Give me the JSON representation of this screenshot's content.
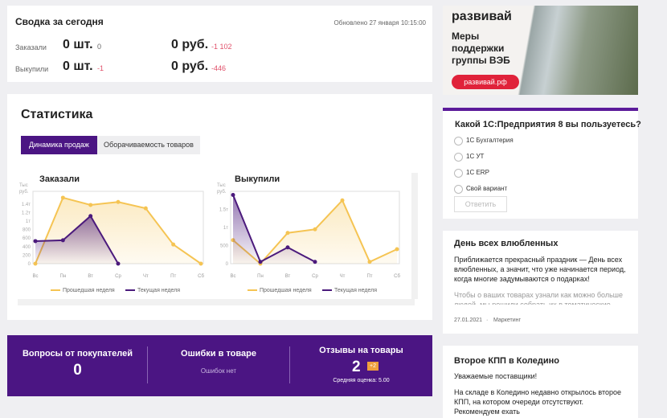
{
  "summary": {
    "title": "Сводка за сегодня",
    "updated": "Обновлено 27 января 10:15:00",
    "rows": [
      {
        "label": "Заказали",
        "count": "0 шт.",
        "count_change": "0",
        "sum": "0 руб.",
        "sum_change": "-1 102"
      },
      {
        "label": "Выкупили",
        "count": "0 шт.",
        "count_change": "-1",
        "sum": "0 руб.",
        "sum_change": "-446"
      }
    ]
  },
  "banner": {
    "brand": "развивай",
    "text": "Меры поддержки группы ВЭБ",
    "button": "развивай.рф"
  },
  "statistics": {
    "title": "Статистика",
    "tabs": [
      "Динамика продаж",
      "Оборачиваемость товаров"
    ]
  },
  "chart_data": [
    {
      "type": "line",
      "title": "Заказали",
      "y_label_lines": [
        "Тыс",
        "руб."
      ],
      "categories": [
        "Вс",
        "Пн",
        "Вт",
        "Ср",
        "Чт",
        "Пт",
        "Сб"
      ],
      "series": [
        {
          "name": "Прошедшая неделя",
          "color": "#f5c453",
          "values": [
            0,
            1550,
            1380,
            1450,
            1300,
            450,
            0
          ]
        },
        {
          "name": "Текущая неделя",
          "color": "#4b1a7c",
          "values": [
            530,
            550,
            1120,
            0,
            null,
            null,
            null
          ]
        }
      ],
      "ylim": [
        0,
        1700
      ],
      "yticks": [
        0,
        200,
        400,
        600,
        800,
        {
          "value": 1000,
          "label": "1т"
        },
        {
          "value": 1200,
          "label": "1.2т"
        },
        {
          "value": 1400,
          "label": "1.4т"
        }
      ]
    },
    {
      "type": "line",
      "title": "Выкупили",
      "y_label_lines": [
        "Тыс",
        "руб."
      ],
      "categories": [
        "Вс",
        "Пн",
        "Вт",
        "Ср",
        "Чт",
        "Пт",
        "Сб"
      ],
      "series": [
        {
          "name": "Прошедшая неделя",
          "color": "#f5c453",
          "values": [
            650,
            0,
            850,
            950,
            1750,
            50,
            400
          ]
        },
        {
          "name": "Текущая неделя",
          "color": "#4b1a7c",
          "values": [
            1900,
            50,
            450,
            50,
            null,
            null,
            null
          ]
        }
      ],
      "ylim": [
        0,
        2000
      ],
      "yticks": [
        0,
        500,
        {
          "value": 1000,
          "label": "1т"
        },
        {
          "value": 1500,
          "label": "1.5т"
        }
      ]
    }
  ],
  "feedback": {
    "questions_title": "Вопросы от покупателей",
    "questions_count": "0",
    "errors_title": "Ошибки в товаре",
    "errors_text": "Ошибок нет",
    "reviews_title": "Отзывы на товары",
    "reviews_count": "2",
    "reviews_new": "+2",
    "reviews_rating": "Средняя оценка: 5.00"
  },
  "poll": {
    "question": "Какой 1С:Предприятия 8 вы пользуетесь?",
    "options": [
      "1С Бухгалтерия",
      "1С УТ",
      "1С ERP",
      "Свой вариант"
    ],
    "button": "Ответить"
  },
  "news": [
    {
      "title": "День всех влюбленных",
      "paragraphs": [
        "Приближается прекрасный праздник — День всех влюбленных, а значит, что уже начинается период, когда многие задумываются о подарках!",
        "Чтобы о ваших товарах узнали как можно больше людей, мы решили собрать их в тематические подборки!"
      ],
      "date": "27.01.2021",
      "tag": "Маркетинг"
    },
    {
      "title": "Второе КПП в Коледино",
      "paragraphs": [
        "Уважаемые поставщики!",
        "На складе в Коледино недавно открылось второе КПП, на котором очереди отсутствуют. Рекомендуем ехать"
      ]
    }
  ]
}
